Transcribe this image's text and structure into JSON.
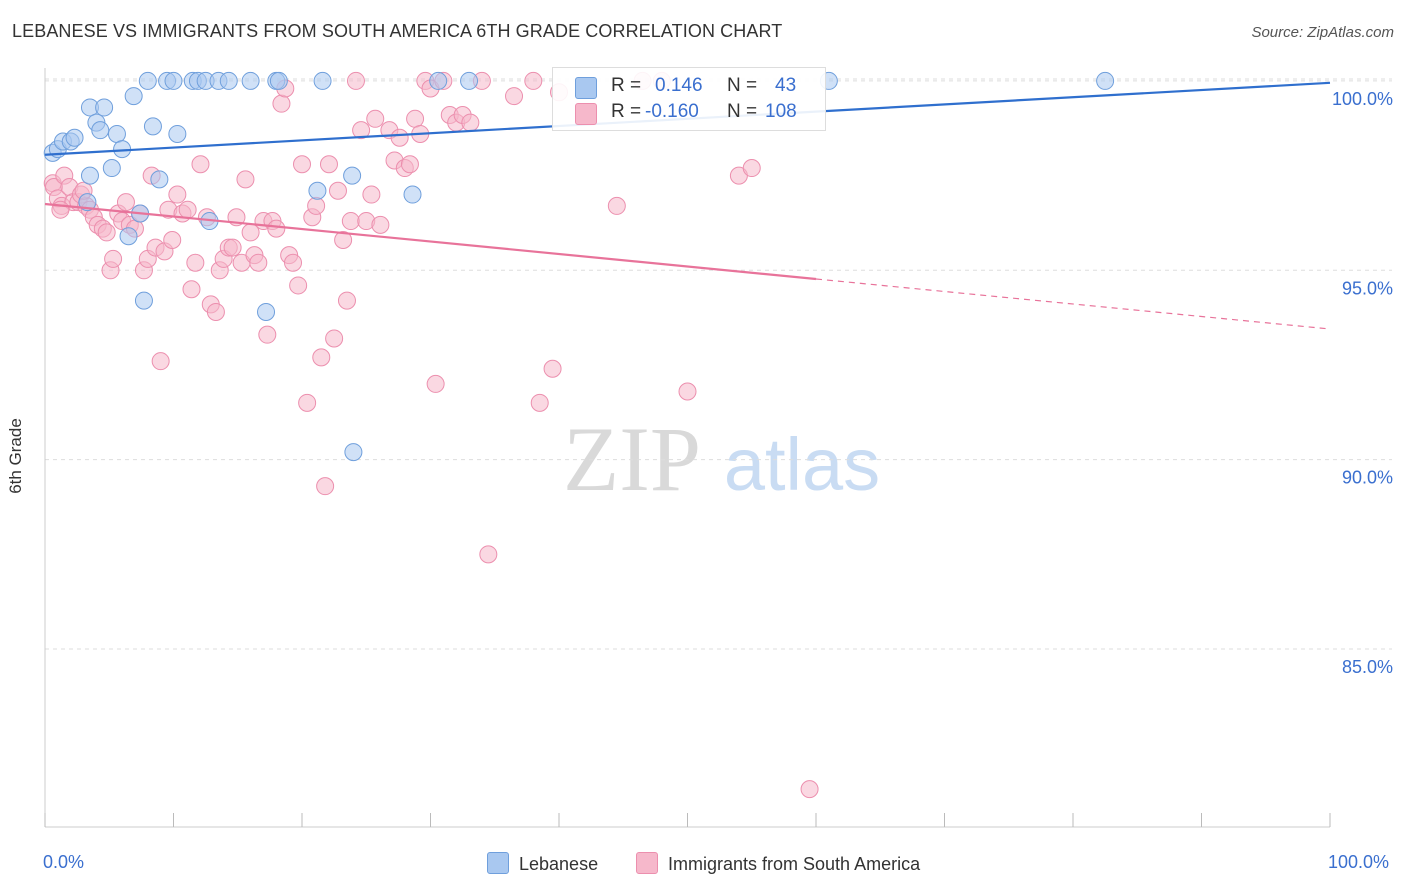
{
  "title": "LEBANESE VS IMMIGRANTS FROM SOUTH AMERICA 6TH GRADE CORRELATION CHART",
  "source": "Source: ZipAtlas.com",
  "watermark": {
    "zip": "ZIP",
    "atlas": "atlas"
  },
  "legend": {
    "lebanese": {
      "r_label": "R =",
      "r_value": "0.146",
      "n_label": "N =",
      "n_value": "43"
    },
    "immigrants": {
      "r_label": "R =",
      "r_value": "-0.160",
      "n_label": "N =",
      "n_value": "108"
    }
  },
  "bottom_legend": {
    "lebanese": "Lebanese",
    "immigrants": "Immigrants from South America"
  },
  "colors": {
    "lebanese_fill": "#a9c8f0",
    "lebanese_stroke": "#6f9fdc",
    "lebanese_line": "#2f6fce",
    "immigrants_fill": "#f6b8cb",
    "immigrants_stroke": "#ec8fae",
    "immigrants_line": "#e8739a",
    "tick_label": "#3a6fcf",
    "grid": "#dddddd"
  },
  "chart_data": {
    "type": "scatter",
    "title": "LEBANESE VS IMMIGRANTS FROM SOUTH AMERICA 6TH GRADE CORRELATION CHART",
    "xlabel": "",
    "ylabel": "6th Grade",
    "xlim": [
      0,
      100
    ],
    "ylim": [
      80.3,
      100.5
    ],
    "x_tick_labels": [
      "0.0%",
      "100.0%"
    ],
    "y_ticks": [
      85,
      90,
      95,
      100
    ],
    "y_tick_labels": [
      "85.0%",
      "90.0%",
      "95.0%",
      "100.0%"
    ],
    "grid": "horizontal dashed",
    "legend_position": "top-center",
    "series": [
      {
        "name": "Lebanese",
        "r": 0.146,
        "n": 43,
        "trend": {
          "x": [
            0,
            100
          ],
          "y": [
            98.05,
            99.95
          ],
          "dashed_from": null
        },
        "points": [
          [
            0.6,
            98.1
          ],
          [
            1.0,
            98.2
          ],
          [
            1.4,
            98.4
          ],
          [
            2.0,
            98.4
          ],
          [
            2.3,
            98.5
          ],
          [
            3.5,
            97.5
          ],
          [
            3.3,
            96.8
          ],
          [
            3.5,
            99.3
          ],
          [
            4.0,
            98.9
          ],
          [
            4.3,
            98.7
          ],
          [
            4.6,
            99.3
          ],
          [
            5.2,
            97.7
          ],
          [
            5.6,
            98.6
          ],
          [
            6.0,
            98.2
          ],
          [
            6.5,
            95.9
          ],
          [
            6.9,
            99.6
          ],
          [
            7.4,
            96.5
          ],
          [
            7.7,
            94.2
          ],
          [
            8.0,
            100.0
          ],
          [
            8.4,
            98.8
          ],
          [
            8.9,
            97.4
          ],
          [
            9.5,
            100.0
          ],
          [
            10.0,
            100.0
          ],
          [
            10.3,
            98.6
          ],
          [
            11.5,
            100.0
          ],
          [
            11.9,
            100.0
          ],
          [
            12.5,
            100.0
          ],
          [
            12.8,
            96.3
          ],
          [
            13.5,
            100.0
          ],
          [
            14.3,
            100.0
          ],
          [
            16.0,
            100.0
          ],
          [
            17.2,
            93.9
          ],
          [
            18.0,
            100.0
          ],
          [
            18.2,
            100.0
          ],
          [
            21.2,
            97.1
          ],
          [
            21.6,
            100.0
          ],
          [
            23.9,
            97.5
          ],
          [
            28.6,
            97.0
          ],
          [
            30.6,
            100.0
          ],
          [
            33.0,
            100.0
          ],
          [
            24.0,
            90.2
          ],
          [
            61.0,
            100.0
          ],
          [
            82.5,
            100.0
          ]
        ]
      },
      {
        "name": "Immigrants from South America",
        "r": -0.16,
        "n": 108,
        "trend": {
          "x": [
            0,
            100
          ],
          "y": [
            96.75,
            93.45
          ],
          "dashed_from": 60
        },
        "points": [
          [
            0.6,
            97.3
          ],
          [
            0.7,
            97.2
          ],
          [
            1.0,
            96.9
          ],
          [
            1.3,
            96.7
          ],
          [
            1.5,
            97.5
          ],
          [
            1.9,
            97.2
          ],
          [
            2.2,
            96.8
          ],
          [
            2.6,
            96.8
          ],
          [
            2.8,
            97.0
          ],
          [
            3.2,
            96.7
          ],
          [
            3.5,
            96.6
          ],
          [
            3.8,
            96.4
          ],
          [
            4.1,
            96.2
          ],
          [
            4.5,
            96.1
          ],
          [
            4.8,
            96.0
          ],
          [
            5.1,
            95.0
          ],
          [
            5.3,
            95.3
          ],
          [
            5.7,
            96.5
          ],
          [
            6.0,
            96.3
          ],
          [
            6.3,
            96.8
          ],
          [
            6.6,
            96.2
          ],
          [
            7.0,
            96.1
          ],
          [
            7.4,
            96.5
          ],
          [
            7.7,
            95.0
          ],
          [
            8.0,
            95.3
          ],
          [
            8.3,
            97.5
          ],
          [
            8.6,
            95.6
          ],
          [
            9.0,
            92.6
          ],
          [
            9.3,
            95.5
          ],
          [
            9.6,
            96.6
          ],
          [
            9.9,
            95.8
          ],
          [
            10.3,
            97.0
          ],
          [
            10.7,
            96.5
          ],
          [
            11.1,
            96.6
          ],
          [
            11.4,
            94.5
          ],
          [
            11.7,
            95.2
          ],
          [
            12.1,
            97.8
          ],
          [
            12.6,
            96.4
          ],
          [
            12.9,
            94.1
          ],
          [
            13.3,
            93.9
          ],
          [
            13.6,
            95.0
          ],
          [
            13.9,
            95.3
          ],
          [
            14.3,
            95.6
          ],
          [
            14.6,
            95.6
          ],
          [
            14.9,
            96.4
          ],
          [
            15.3,
            95.2
          ],
          [
            15.6,
            97.4
          ],
          [
            16.0,
            96.0
          ],
          [
            16.3,
            95.4
          ],
          [
            16.6,
            95.2
          ],
          [
            17.0,
            96.3
          ],
          [
            17.3,
            93.3
          ],
          [
            17.7,
            96.3
          ],
          [
            18.0,
            96.1
          ],
          [
            18.4,
            99.4
          ],
          [
            18.7,
            99.8
          ],
          [
            19.0,
            95.4
          ],
          [
            19.3,
            95.2
          ],
          [
            19.7,
            94.6
          ],
          [
            20.0,
            97.8
          ],
          [
            20.4,
            91.5
          ],
          [
            20.8,
            96.4
          ],
          [
            21.1,
            96.7
          ],
          [
            21.5,
            92.7
          ],
          [
            21.8,
            89.3
          ],
          [
            22.1,
            97.8
          ],
          [
            22.5,
            93.2
          ],
          [
            22.8,
            97.1
          ],
          [
            23.2,
            95.8
          ],
          [
            23.5,
            94.2
          ],
          [
            23.8,
            96.3
          ],
          [
            24.2,
            100.0
          ],
          [
            24.6,
            98.7
          ],
          [
            25.0,
            96.3
          ],
          [
            25.4,
            97.0
          ],
          [
            25.7,
            99.0
          ],
          [
            26.1,
            96.2
          ],
          [
            26.8,
            98.7
          ],
          [
            27.2,
            97.9
          ],
          [
            27.6,
            98.5
          ],
          [
            28.0,
            97.7
          ],
          [
            28.4,
            97.8
          ],
          [
            28.8,
            99.0
          ],
          [
            29.2,
            98.6
          ],
          [
            29.6,
            100.0
          ],
          [
            30.0,
            99.8
          ],
          [
            30.4,
            92.0
          ],
          [
            31.0,
            100.0
          ],
          [
            31.5,
            99.1
          ],
          [
            32.0,
            98.9
          ],
          [
            32.5,
            99.1
          ],
          [
            33.1,
            98.9
          ],
          [
            34.0,
            100.0
          ],
          [
            36.5,
            99.6
          ],
          [
            38.0,
            100.0
          ],
          [
            38.5,
            91.5
          ],
          [
            39.5,
            92.4
          ],
          [
            40.0,
            99.7
          ],
          [
            34.5,
            87.5
          ],
          [
            44.5,
            96.7
          ],
          [
            46.5,
            100.0
          ],
          [
            48.0,
            100.0
          ],
          [
            50.0,
            91.8
          ],
          [
            54.0,
            97.5
          ],
          [
            55.0,
            97.7
          ],
          [
            59.5,
            81.3
          ],
          [
            1.2,
            96.6
          ],
          [
            3.0,
            97.1
          ]
        ]
      }
    ]
  }
}
